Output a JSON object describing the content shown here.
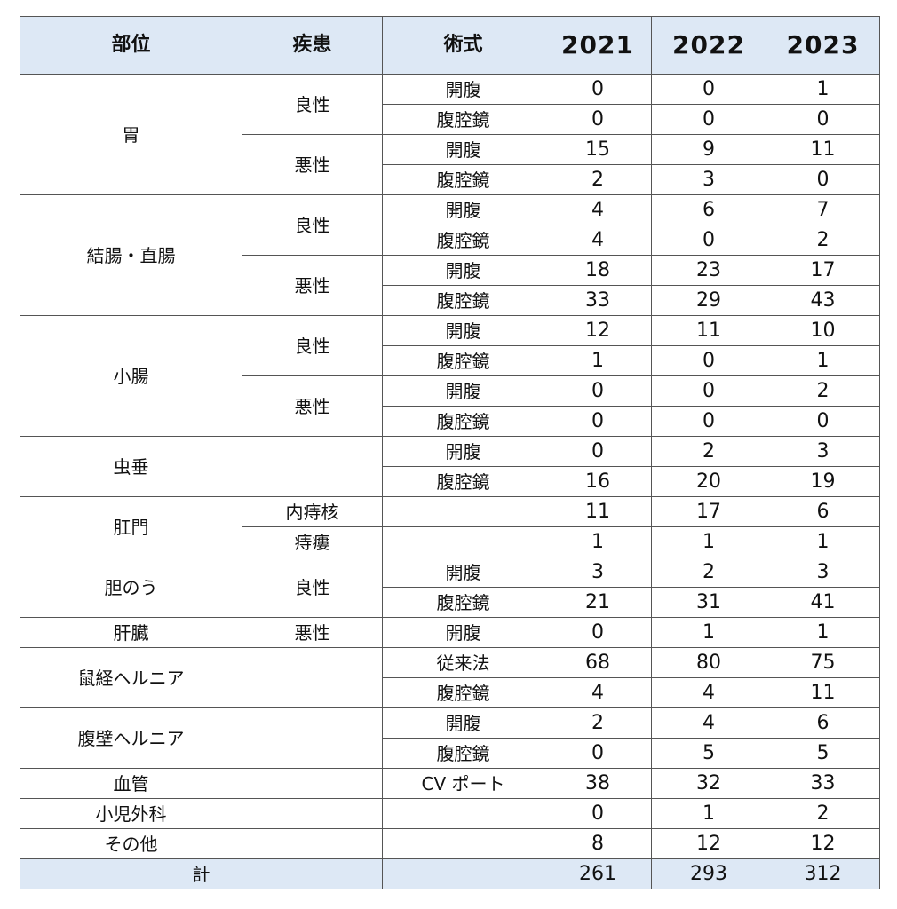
{
  "table": {
    "header": [
      "部位",
      "疾患",
      "術式",
      "2021",
      "2022",
      "2023"
    ],
    "groups": [
      {
        "region": "胃",
        "subgroups": [
          {
            "disease": "良性",
            "rows": [
              {
                "procedure": "開腹",
                "values": [
                  0,
                  0,
                  1
                ]
              },
              {
                "procedure": "腹腔鏡",
                "values": [
                  0,
                  0,
                  0
                ]
              }
            ]
          },
          {
            "disease": "悪性",
            "rows": [
              {
                "procedure": "開腹",
                "values": [
                  15,
                  9,
                  11
                ]
              },
              {
                "procedure": "腹腔鏡",
                "values": [
                  2,
                  3,
                  0
                ]
              }
            ]
          }
        ]
      },
      {
        "region": "結腸・直腸",
        "subgroups": [
          {
            "disease": "良性",
            "rows": [
              {
                "procedure": "開腹",
                "values": [
                  4,
                  6,
                  7
                ]
              },
              {
                "procedure": "腹腔鏡",
                "values": [
                  4,
                  0,
                  2
                ]
              }
            ]
          },
          {
            "disease": "悪性",
            "rows": [
              {
                "procedure": "開腹",
                "values": [
                  18,
                  23,
                  17
                ]
              },
              {
                "procedure": "腹腔鏡",
                "values": [
                  33,
                  29,
                  43
                ]
              }
            ]
          }
        ]
      },
      {
        "region": "小腸",
        "subgroups": [
          {
            "disease": "良性",
            "rows": [
              {
                "procedure": "開腹",
                "values": [
                  12,
                  11,
                  10
                ]
              },
              {
                "procedure": "腹腔鏡",
                "values": [
                  1,
                  0,
                  1
                ]
              }
            ]
          },
          {
            "disease": "悪性",
            "rows": [
              {
                "procedure": "開腹",
                "values": [
                  0,
                  0,
                  2
                ]
              },
              {
                "procedure": "腹腔鏡",
                "values": [
                  0,
                  0,
                  0
                ]
              }
            ]
          }
        ]
      },
      {
        "region": "虫垂",
        "subgroups": [
          {
            "rows": [
              {
                "procedure": "開腹",
                "values": [
                  0,
                  2,
                  3
                ]
              },
              {
                "procedure": "腹腔鏡",
                "values": [
                  16,
                  20,
                  19
                ]
              }
            ]
          }
        ]
      },
      {
        "region": "肛門",
        "subgroups": [
          {
            "disease": "内痔核",
            "rows": [
              {
                "values": [
                  11,
                  17,
                  6
                ]
              }
            ]
          },
          {
            "disease": "痔瘻",
            "rows": [
              {
                "values": [
                  1,
                  1,
                  1
                ]
              }
            ]
          }
        ]
      },
      {
        "region": "胆のう",
        "subgroups": [
          {
            "disease": "良性",
            "rows": [
              {
                "procedure": "開腹",
                "values": [
                  3,
                  2,
                  3
                ]
              },
              {
                "procedure": "腹腔鏡",
                "values": [
                  21,
                  31,
                  41
                ]
              }
            ]
          }
        ]
      },
      {
        "region": "肝臓",
        "subgroups": [
          {
            "disease": "悪性",
            "rows": [
              {
                "procedure": "開腹",
                "values": [
                  0,
                  1,
                  1
                ]
              }
            ]
          }
        ]
      },
      {
        "region": "鼠経ヘルニア",
        "subgroups": [
          {
            "rows": [
              {
                "procedure": "従来法",
                "values": [
                  68,
                  80,
                  75
                ]
              },
              {
                "procedure": "腹腔鏡",
                "values": [
                  4,
                  4,
                  11
                ]
              }
            ]
          }
        ]
      },
      {
        "region": "腹壁ヘルニア",
        "subgroups": [
          {
            "rows": [
              {
                "procedure": "開腹",
                "values": [
                  2,
                  4,
                  6
                ]
              },
              {
                "procedure": "腹腔鏡",
                "values": [
                  0,
                  5,
                  5
                ]
              }
            ]
          }
        ]
      },
      {
        "region": "血管",
        "subgroups": [
          {
            "rows": [
              {
                "procedure": "CV ポート",
                "values": [
                  38,
                  32,
                  33
                ]
              }
            ]
          }
        ]
      },
      {
        "region": "小児外科",
        "subgroups": [
          {
            "rows": [
              {
                "values": [
                  0,
                  1,
                  2
                ]
              }
            ]
          }
        ]
      },
      {
        "region": "その他",
        "subgroups": [
          {
            "rows": [
              {
                "values": [
                  8,
                  12,
                  12
                ]
              }
            ]
          }
        ]
      }
    ],
    "total": {
      "label": "計",
      "values": [
        261,
        293,
        312
      ]
    }
  }
}
